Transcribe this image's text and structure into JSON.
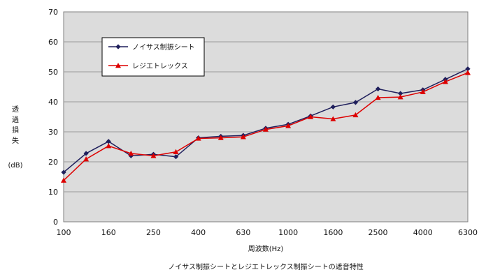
{
  "chart_data": {
    "type": "line",
    "title": "",
    "caption": "ノイサス制振シートとレジエトレックス制振シートの遮音特性",
    "xlabel": "周波数(Hz)",
    "ylabel": "透過損失",
    "ylabel_unit": "(dB)",
    "ylim": [
      0,
      70
    ],
    "yticks": [
      "0",
      "10",
      "20",
      "30",
      "40",
      "50",
      "60",
      "70"
    ],
    "grid": true,
    "legend_position": "top-left",
    "x": [
      "100",
      "125",
      "160",
      "200",
      "250",
      "315",
      "400",
      "500",
      "630",
      "800",
      "1000",
      "1250",
      "1600",
      "2000",
      "2500",
      "3150",
      "4000",
      "5000",
      "6300"
    ],
    "xtick_labels": [
      "100",
      "160",
      "250",
      "400",
      "630",
      "1000",
      "1600",
      "2500",
      "4000",
      "6300"
    ],
    "series": [
      {
        "name": "ノイサス制振シート",
        "color": "#1f1f5c",
        "marker": "diamond",
        "values": [
          16.5,
          22.8,
          26.8,
          22.0,
          22.5,
          21.7,
          28.0,
          28.5,
          28.8,
          31.2,
          32.5,
          35.3,
          38.3,
          39.8,
          44.3,
          42.8,
          44.0,
          47.5,
          51.0
        ]
      },
      {
        "name": "レジエトレックス",
        "color": "#dd0000",
        "marker": "triangle",
        "values": [
          13.8,
          20.9,
          25.3,
          22.8,
          22.0,
          23.3,
          27.8,
          28.0,
          28.3,
          30.8,
          32.0,
          35.0,
          34.3,
          35.6,
          41.4,
          41.6,
          43.3,
          46.7,
          49.7
        ]
      }
    ]
  }
}
